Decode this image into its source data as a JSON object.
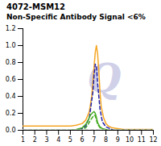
{
  "chart_data": {
    "type": "line",
    "title": "4072-MSM12",
    "subtitle": "Non-Specific Antibody Signal <6%",
    "annotations": [
      {
        "text": "Q",
        "color": "#D0D0E8"
      }
    ],
    "xlim": [
      1,
      12
    ],
    "xticks": [
      1,
      2,
      3,
      4,
      5,
      6,
      7,
      8,
      9,
      10,
      11,
      12
    ],
    "ylim": [
      0,
      1.2
    ],
    "yticks": [
      {
        "value": 0,
        "label": "0.0"
      },
      0.2,
      0.4,
      0.6,
      0.8,
      {
        "value": 1.0,
        "label": "1.0"
      },
      1.2
    ],
    "grid": false,
    "series": [
      {
        "color": "#F5A623",
        "line_style": "solid",
        "x": [
          1,
          2,
          3,
          4,
          5,
          5.5,
          6,
          6.3,
          6.6,
          6.8,
          7.0,
          7.1,
          7.2,
          7.3,
          7.4,
          7.5,
          7.6,
          7.8,
          8.0,
          8.2,
          8.5,
          9,
          9.5,
          10,
          11,
          12
        ],
        "values": [
          0.05,
          0.05,
          0.05,
          0.05,
          0.05,
          0.06,
          0.08,
          0.12,
          0.22,
          0.4,
          0.75,
          0.92,
          1.0,
          0.9,
          0.7,
          0.45,
          0.28,
          0.15,
          0.08,
          0.05,
          0.03,
          0.02,
          0.01,
          0.01,
          0.01,
          0.01
        ]
      },
      {
        "color": "#2222AA",
        "line_style": "dashed",
        "x": [
          1,
          2,
          3,
          4,
          5,
          5.5,
          6,
          6.3,
          6.6,
          6.9,
          7.0,
          7.1,
          7.2,
          7.3,
          7.5,
          7.7,
          8.0,
          8.5,
          9,
          10,
          11,
          12
        ],
        "values": [
          0.0,
          0.0,
          0.0,
          0.0,
          0.0,
          0.0,
          0.02,
          0.05,
          0.15,
          0.45,
          0.65,
          0.78,
          0.75,
          0.55,
          0.25,
          0.1,
          0.04,
          0.01,
          0.0,
          0.0,
          0.0,
          0.0
        ]
      },
      {
        "color": "#44AA22",
        "line_style": "solid",
        "x": [
          1,
          2,
          3,
          4,
          5,
          5.5,
          6,
          6.3,
          6.5,
          6.7,
          6.9,
          7.0,
          7.1,
          7.2,
          7.3,
          7.5,
          7.7,
          8.0,
          8.5,
          9,
          10,
          11,
          12
        ],
        "values": [
          0.0,
          0.0,
          0.0,
          0.0,
          0.0,
          0.01,
          0.03,
          0.07,
          0.12,
          0.18,
          0.21,
          0.22,
          0.2,
          0.15,
          0.09,
          0.04,
          0.02,
          0.01,
          0.0,
          0.0,
          0.0,
          0.0,
          0.0
        ]
      },
      {
        "color": "#44AA22",
        "line_style": "dashed",
        "x": [
          1,
          2,
          3,
          4,
          5,
          5.5,
          6,
          6.3,
          6.5,
          6.7,
          6.9,
          7.0,
          7.1,
          7.2,
          7.3,
          7.5,
          7.7,
          8.0,
          8.5,
          9,
          10,
          11,
          12
        ],
        "values": [
          0.0,
          0.0,
          0.0,
          0.0,
          0.0,
          0.0,
          0.01,
          0.03,
          0.07,
          0.12,
          0.16,
          0.18,
          0.17,
          0.12,
          0.07,
          0.03,
          0.01,
          0.0,
          0.0,
          0.0,
          0.0,
          0.0,
          0.0
        ]
      },
      {
        "color": "#CCCCCC",
        "line_style": "dashed",
        "x": [
          1,
          2,
          3,
          4,
          5,
          6,
          7,
          8,
          9,
          10,
          11,
          12
        ],
        "values": [
          0.005,
          0.005,
          0.005,
          0.005,
          0.005,
          0.005,
          0.005,
          0.005,
          0.005,
          0.005,
          0.005,
          0.005
        ]
      }
    ]
  }
}
